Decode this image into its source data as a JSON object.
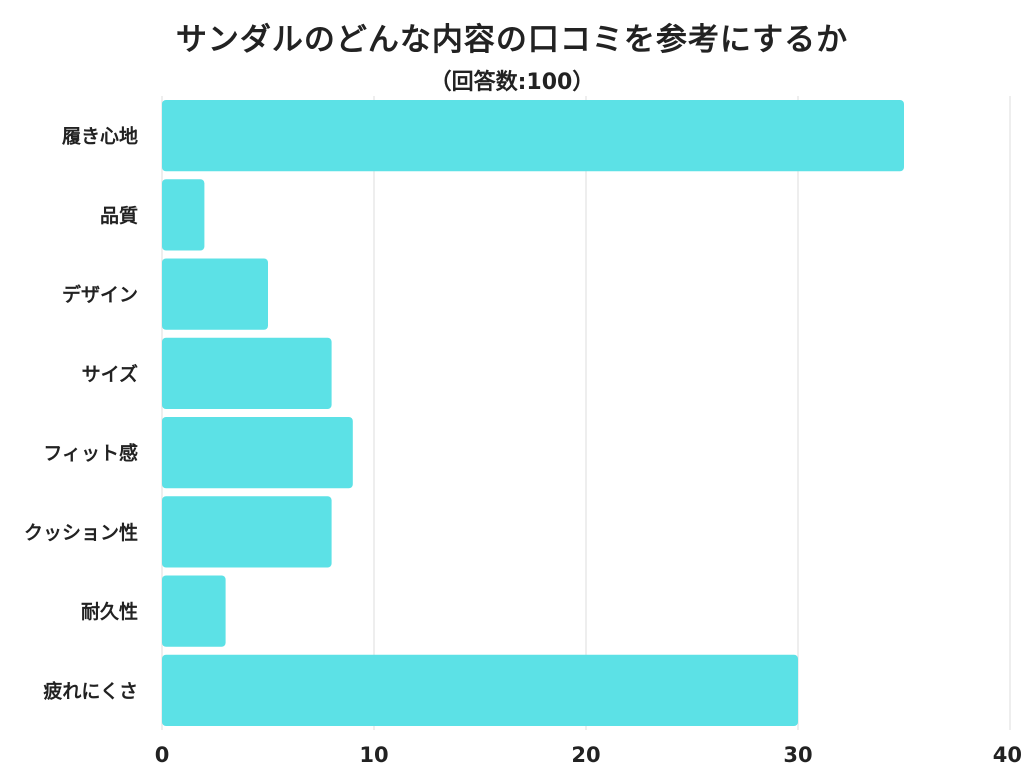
{
  "chart_data": {
    "type": "bar",
    "orientation": "horizontal",
    "title": "サンダルのどんな内容の口コミを参考にするか",
    "subtitle": "（回答数:100）",
    "categories": [
      "履き心地",
      "品質",
      "デザイン",
      "サイズ",
      "フィット感",
      "クッション性",
      "耐久性",
      "疲れにくさ"
    ],
    "values": [
      35,
      2,
      5,
      8,
      9,
      8,
      3,
      30
    ],
    "xlim": [
      0,
      40
    ],
    "xticks": [
      0,
      10,
      20,
      30,
      40
    ],
    "xlabel": "",
    "ylabel": "",
    "grid": true,
    "legend": "none",
    "colors": {
      "bar": "#5ce1e6",
      "grid": "#dddddd",
      "text": "#222222"
    }
  }
}
